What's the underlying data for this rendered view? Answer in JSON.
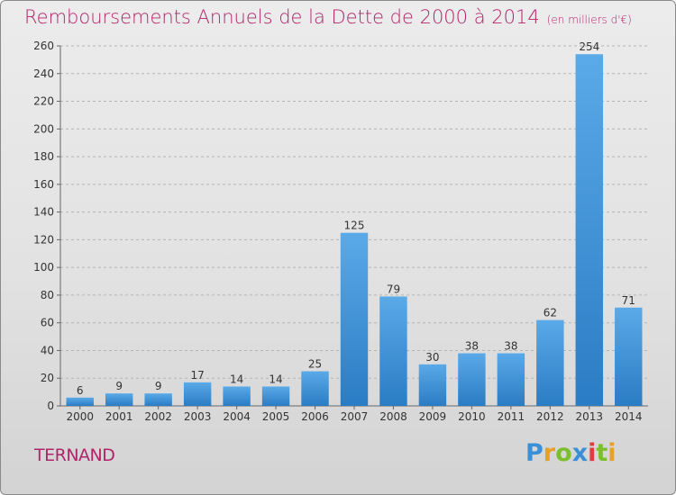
{
  "header": {
    "title": "Remboursements Annuels de la Dette de 2000 à 2014",
    "unit": "(en milliers d'€)"
  },
  "commune": "TERNAND",
  "logo": {
    "letters": [
      "P",
      "r",
      "o",
      "x",
      "i",
      "t",
      "i"
    ]
  },
  "colors": {
    "title": "#b0256a",
    "bar_top": "#5aaae8",
    "bar_bottom": "#2a7cc4",
    "grid": "#b4b4b4"
  },
  "chart_data": {
    "type": "bar",
    "title": "Remboursements Annuels de la Dette de 2000 à 2014",
    "xlabel": "",
    "ylabel": "",
    "categories": [
      "2000",
      "2001",
      "2002",
      "2003",
      "2004",
      "2005",
      "2006",
      "2007",
      "2008",
      "2009",
      "2010",
      "2011",
      "2012",
      "2013",
      "2014"
    ],
    "values": [
      6,
      9,
      9,
      17,
      14,
      14,
      25,
      125,
      79,
      30,
      38,
      38,
      62,
      254,
      71
    ],
    "ylim": [
      0,
      260
    ],
    "yticks": [
      0,
      20,
      40,
      60,
      80,
      100,
      120,
      140,
      160,
      180,
      200,
      220,
      240,
      260
    ],
    "grid": true,
    "data_labels": true
  }
}
